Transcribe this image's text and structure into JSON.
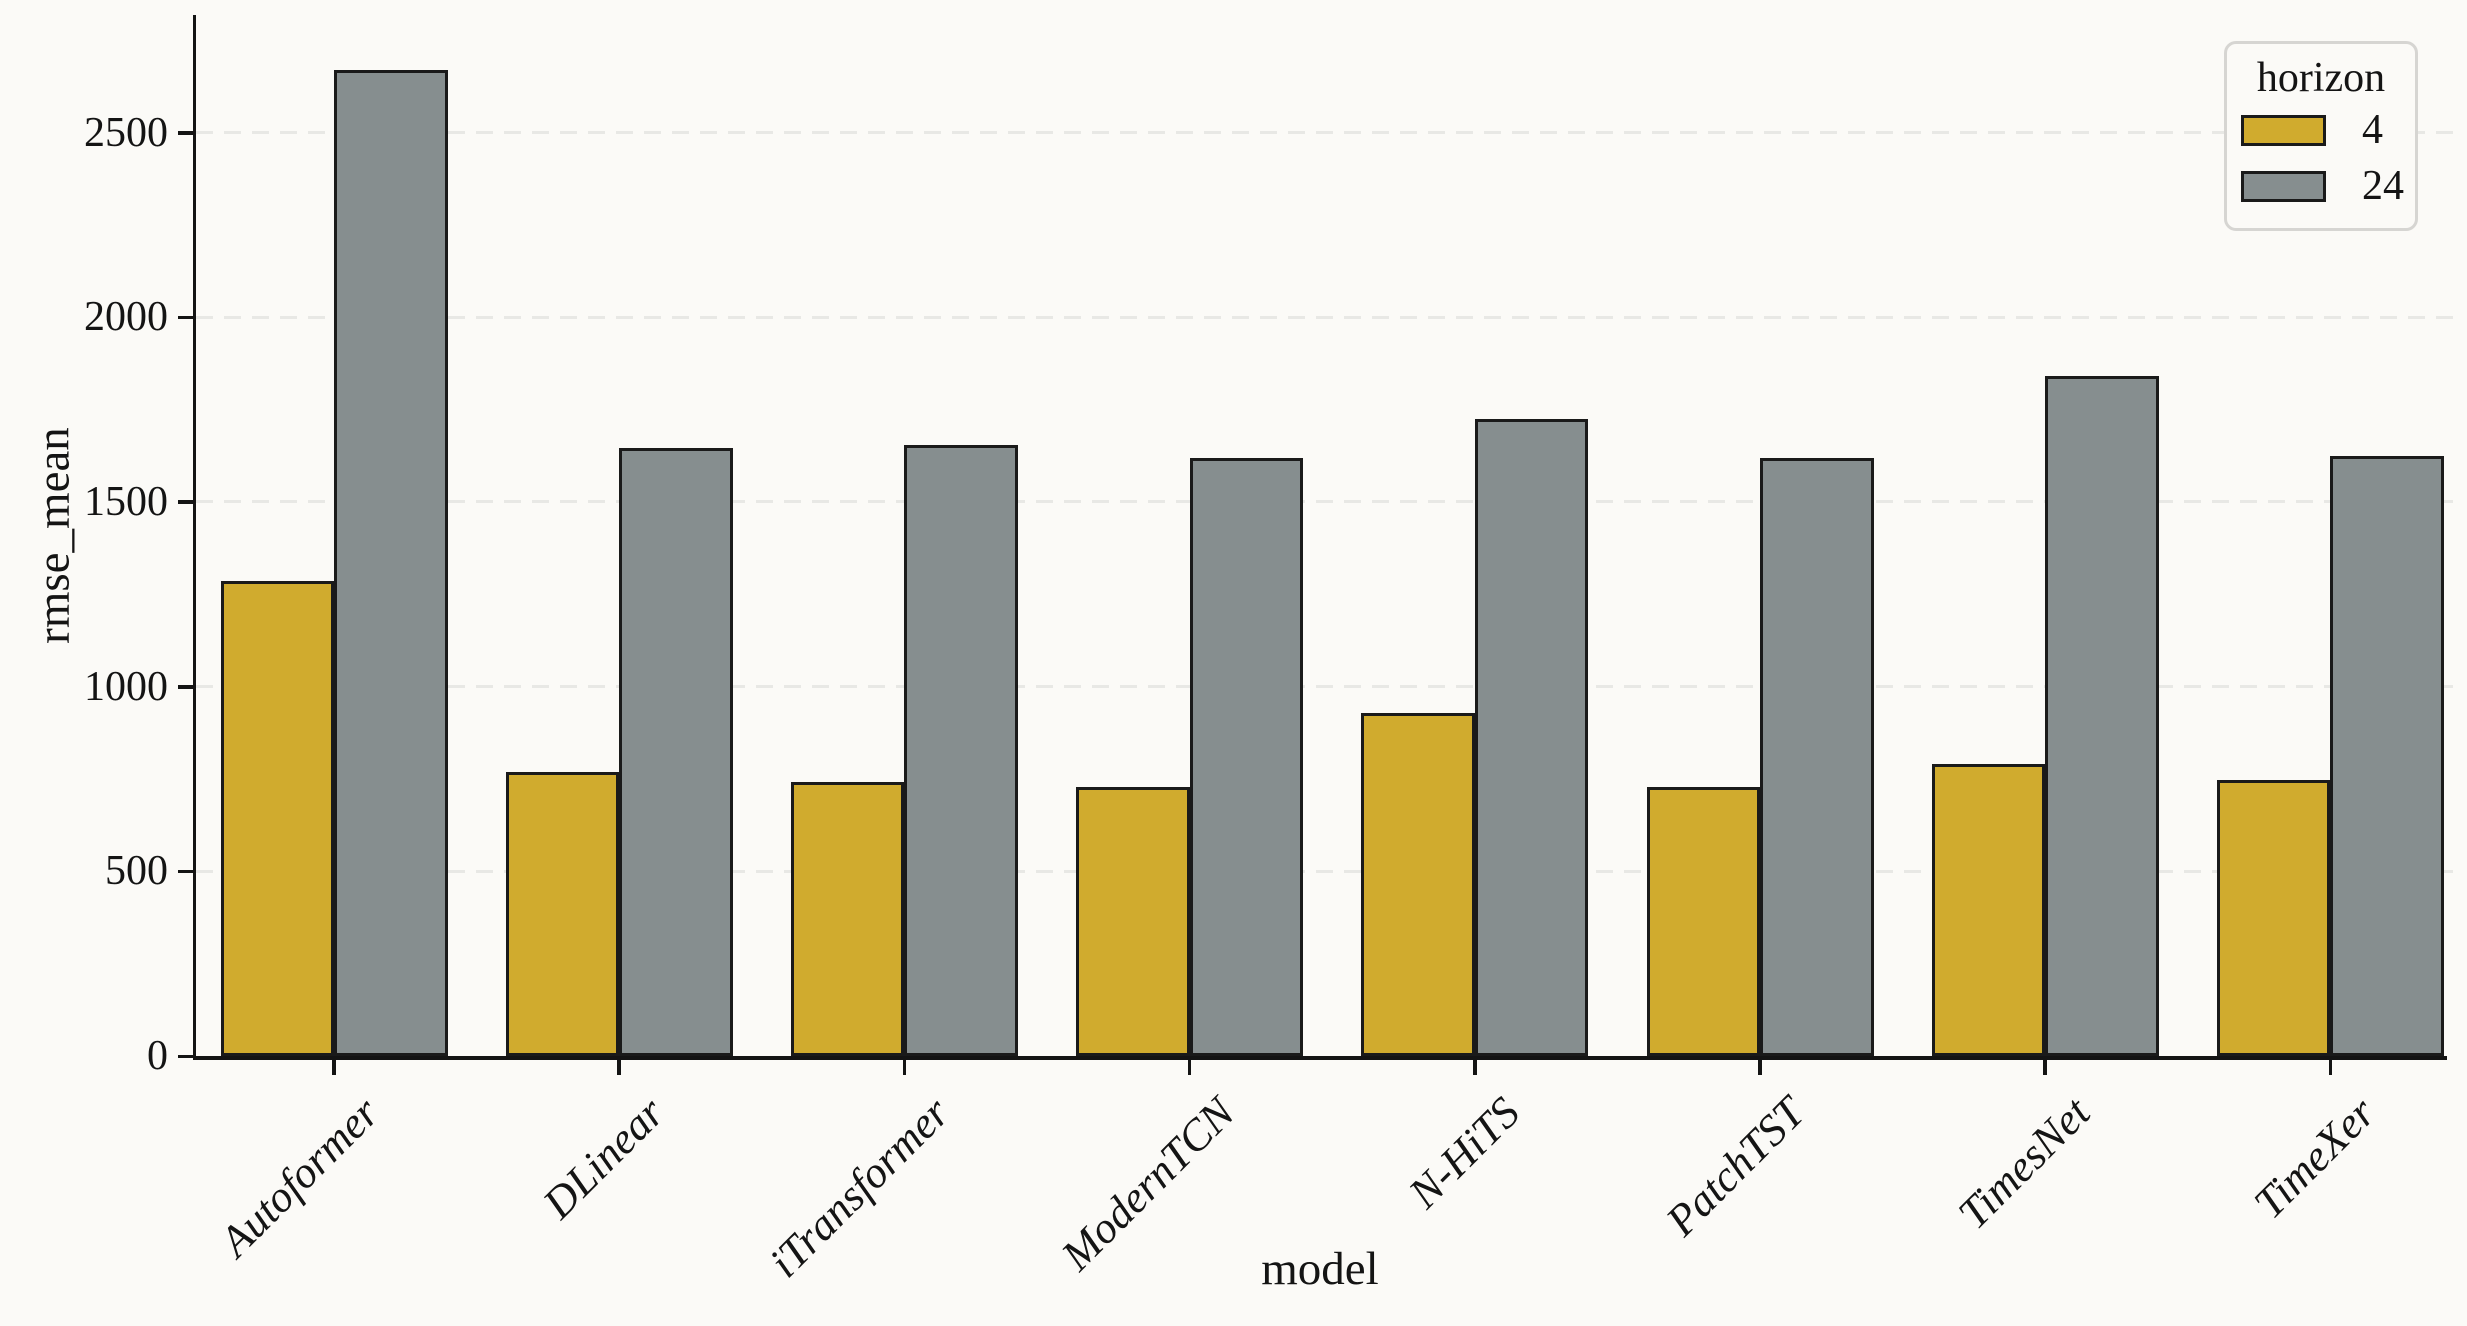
{
  "chart_data": {
    "type": "bar",
    "title": "",
    "xlabel": "model",
    "ylabel": "rmse_mean",
    "categories": [
      "Autoformer",
      "DLinear",
      "iTransformer",
      "ModernTCN",
      "N-HiTS",
      "PatchTST",
      "TimesNet",
      "TimeXer"
    ],
    "series": [
      {
        "name": "4",
        "color": "#d0ab2e",
        "values": [
          1285,
          770,
          743,
          729,
          929,
          729,
          791,
          748
        ]
      },
      {
        "name": "24",
        "color": "#868e8f",
        "values": [
          2670,
          1645,
          1653,
          1620,
          1725,
          1619,
          1841,
          1623
        ]
      }
    ],
    "ylim": [
      0,
      2770
    ],
    "yticks": [
      0,
      500,
      1000,
      1500,
      2000,
      2500
    ],
    "grid": "horizontal-dashed",
    "legend": {
      "title": "horizon",
      "position": "upper-right"
    },
    "colors": {
      "bar_edge": "#1a1a1a",
      "grid": "#e8e8e5",
      "background": "#fbfaf7",
      "text": "#141414",
      "legend_border": "#d6d5d2"
    }
  }
}
